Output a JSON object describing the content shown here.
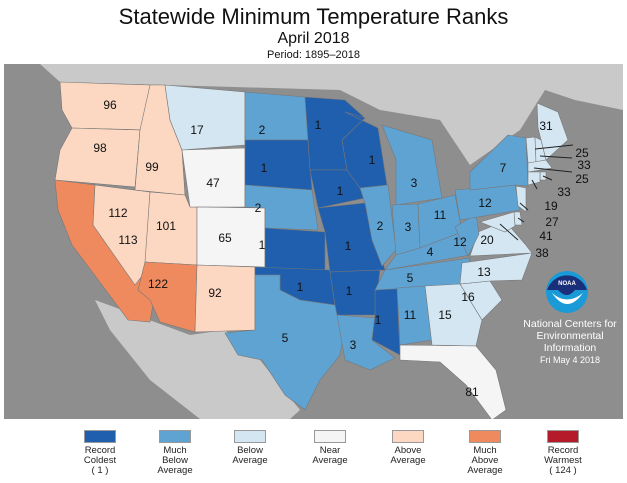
{
  "title": "Statewide Minimum Temperature Ranks",
  "subtitle": "April 2018",
  "period": "Period: 1895–2018",
  "credit": {
    "line1": "National Centers for",
    "line2": "Environmental",
    "line3": "Information",
    "date": "Fri May  4 2018",
    "logo_text": "NOAA"
  },
  "colors": {
    "record_coldest": "#1f5fae",
    "much_below": "#5fa3d3",
    "below": "#d3e6f2",
    "near": "#f5f5f5",
    "above": "#fcd8c2",
    "much_above": "#ef8a5f",
    "record_warmest": "#b51a2b",
    "ocean": "#8e8e8e",
    "land": "#c9c9c9"
  },
  "legend": [
    {
      "key": "record_coldest",
      "l1": "Record",
      "l2": "Coldest",
      "l3": "( 1 )"
    },
    {
      "key": "much_below",
      "l1": "Much",
      "l2": "Below",
      "l3": "Average"
    },
    {
      "key": "below",
      "l1": "Below",
      "l2": "Average",
      "l3": ""
    },
    {
      "key": "near",
      "l1": "Near",
      "l2": "Average",
      "l3": ""
    },
    {
      "key": "above",
      "l1": "Above",
      "l2": "Average",
      "l3": ""
    },
    {
      "key": "much_above",
      "l1": "Much",
      "l2": "Above",
      "l3": "Average"
    },
    {
      "key": "record_warmest",
      "l1": "Record",
      "l2": "Warmest",
      "l3": "( 124 )"
    }
  ],
  "states": [
    {
      "state": "WA",
      "rank": "96",
      "category": "above"
    },
    {
      "state": "OR",
      "rank": "98",
      "category": "above"
    },
    {
      "state": "CA",
      "rank": "113",
      "category": "much_above"
    },
    {
      "state": "ID",
      "rank": "99",
      "category": "above"
    },
    {
      "state": "NV",
      "rank": "112",
      "category": "above"
    },
    {
      "state": "UT",
      "rank": "101",
      "category": "above"
    },
    {
      "state": "AZ",
      "rank": "122",
      "category": "much_above"
    },
    {
      "state": "MT",
      "rank": "17",
      "category": "below"
    },
    {
      "state": "WY",
      "rank": "47",
      "category": "near"
    },
    {
      "state": "CO",
      "rank": "65",
      "category": "near"
    },
    {
      "state": "NM",
      "rank": "92",
      "category": "above"
    },
    {
      "state": "ND",
      "rank": "2",
      "category": "much_below"
    },
    {
      "state": "SD",
      "rank": "1",
      "category": "record_coldest"
    },
    {
      "state": "NE",
      "rank": "2",
      "category": "much_below"
    },
    {
      "state": "KS",
      "rank": "1",
      "category": "record_coldest"
    },
    {
      "state": "OK",
      "rank": "1",
      "category": "record_coldest"
    },
    {
      "state": "TX",
      "rank": "5",
      "category": "much_below"
    },
    {
      "state": "MN",
      "rank": "1",
      "category": "record_coldest"
    },
    {
      "state": "IA",
      "rank": "1",
      "category": "record_coldest"
    },
    {
      "state": "MO",
      "rank": "1",
      "category": "record_coldest"
    },
    {
      "state": "AR",
      "rank": "1",
      "category": "record_coldest"
    },
    {
      "state": "LA",
      "rank": "3",
      "category": "much_below"
    },
    {
      "state": "WI",
      "rank": "1",
      "category": "record_coldest"
    },
    {
      "state": "IL",
      "rank": "2",
      "category": "much_below"
    },
    {
      "state": "MS",
      "rank": "1",
      "category": "record_coldest"
    },
    {
      "state": "MI",
      "rank": "3",
      "category": "much_below"
    },
    {
      "state": "IN",
      "rank": "3",
      "category": "much_below"
    },
    {
      "state": "OH",
      "rank": "11",
      "category": "much_below"
    },
    {
      "state": "KY",
      "rank": "4",
      "category": "much_below"
    },
    {
      "state": "TN",
      "rank": "5",
      "category": "much_below"
    },
    {
      "state": "AL",
      "rank": "11",
      "category": "much_below"
    },
    {
      "state": "GA",
      "rank": "15",
      "category": "below"
    },
    {
      "state": "FL",
      "rank": "81",
      "category": "near"
    },
    {
      "state": "SC",
      "rank": "16",
      "category": "below"
    },
    {
      "state": "NC",
      "rank": "13",
      "category": "below"
    },
    {
      "state": "VA",
      "rank": "20",
      "category": "below"
    },
    {
      "state": "WV",
      "rank": "12",
      "category": "much_below"
    },
    {
      "state": "PA",
      "rank": "12",
      "category": "much_below"
    },
    {
      "state": "NY",
      "rank": "7",
      "category": "much_below"
    },
    {
      "state": "ME",
      "rank": "31",
      "category": "below"
    },
    {
      "state": "VT",
      "rank": "25",
      "category": "below"
    },
    {
      "state": "NH",
      "rank": "33",
      "category": "below"
    },
    {
      "state": "MA",
      "rank": "25",
      "category": "below"
    },
    {
      "state": "RI",
      "rank": "33",
      "category": "below"
    },
    {
      "state": "CT",
      "rank": "19",
      "category": "below"
    },
    {
      "state": "NJ",
      "rank": "27",
      "category": "below"
    },
    {
      "state": "DE",
      "rank": "41",
      "category": "below"
    },
    {
      "state": "MD",
      "rank": "38",
      "category": "below"
    }
  ]
}
